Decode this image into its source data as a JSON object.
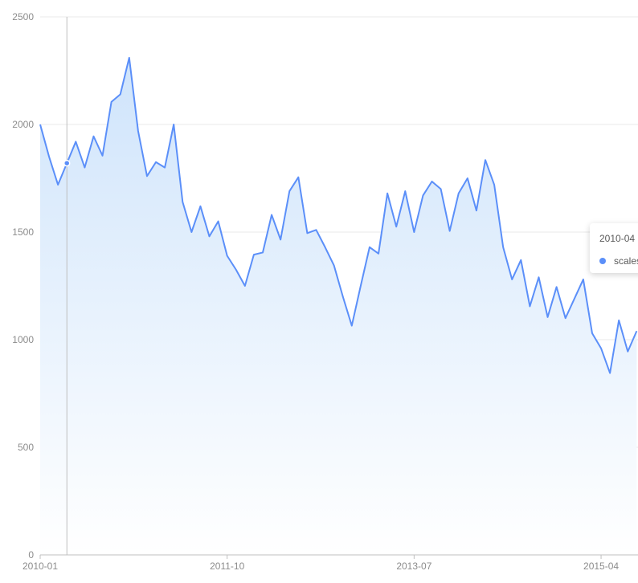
{
  "chart_data": {
    "type": "area",
    "y_ticks": [
      0,
      500,
      1000,
      1500,
      2000,
      2500
    ],
    "ylim": [
      0,
      2500
    ],
    "x_tick_labels": [
      "2010-01",
      "2011-10",
      "2013-07",
      "2015-04"
    ],
    "x": [
      "2010-01",
      "2010-02",
      "2010-03",
      "2010-04",
      "2010-05",
      "2010-06",
      "2010-07",
      "2010-08",
      "2010-09",
      "2010-10",
      "2010-11",
      "2010-12",
      "2011-01",
      "2011-02",
      "2011-03",
      "2011-04",
      "2011-05",
      "2011-06",
      "2011-07",
      "2011-08",
      "2011-09",
      "2011-10",
      "2011-11",
      "2011-12",
      "2012-01",
      "2012-02",
      "2012-03",
      "2012-04",
      "2012-05",
      "2012-06",
      "2012-07",
      "2012-08",
      "2012-09",
      "2012-10",
      "2012-11",
      "2012-12",
      "2013-01",
      "2013-02",
      "2013-03",
      "2013-04",
      "2013-05",
      "2013-06",
      "2013-07",
      "2013-08",
      "2013-09",
      "2013-10",
      "2013-11",
      "2013-12",
      "2014-01",
      "2014-02",
      "2014-03",
      "2014-04",
      "2014-05",
      "2014-06",
      "2014-07",
      "2014-08",
      "2014-09",
      "2014-10",
      "2014-11",
      "2014-12",
      "2015-01",
      "2015-02",
      "2015-03",
      "2015-04",
      "2015-05",
      "2015-06",
      "2015-07",
      "2015-08"
    ],
    "series": [
      {
        "name": "scales",
        "color": "#5B8FF9",
        "values": [
          2000,
          1850,
          1720,
          1820,
          1920,
          1800,
          1945,
          1855,
          2105,
          2140,
          2310,
          1970,
          1760,
          1825,
          1800,
          2000,
          1640,
          1500,
          1620,
          1480,
          1550,
          1390,
          1325,
          1250,
          1395,
          1405,
          1580,
          1465,
          1690,
          1755,
          1495,
          1510,
          1430,
          1345,
          1200,
          1065,
          1250,
          1430,
          1400,
          1680,
          1525,
          1690,
          1500,
          1670,
          1735,
          1700,
          1505,
          1680,
          1750,
          1600,
          1835,
          1720,
          1430,
          1280,
          1370,
          1155,
          1290,
          1105,
          1245,
          1100,
          1190,
          1280,
          1030,
          960,
          845,
          1090,
          945,
          1040
        ]
      }
    ],
    "grid": true,
    "legend": "none",
    "area_gradient_top": "#cfe4fb",
    "area_gradient_bottom": "#ffffff",
    "crosshair_at": "2010-04"
  },
  "tooltip": {
    "title": "2010-04",
    "series_label": "scales"
  }
}
